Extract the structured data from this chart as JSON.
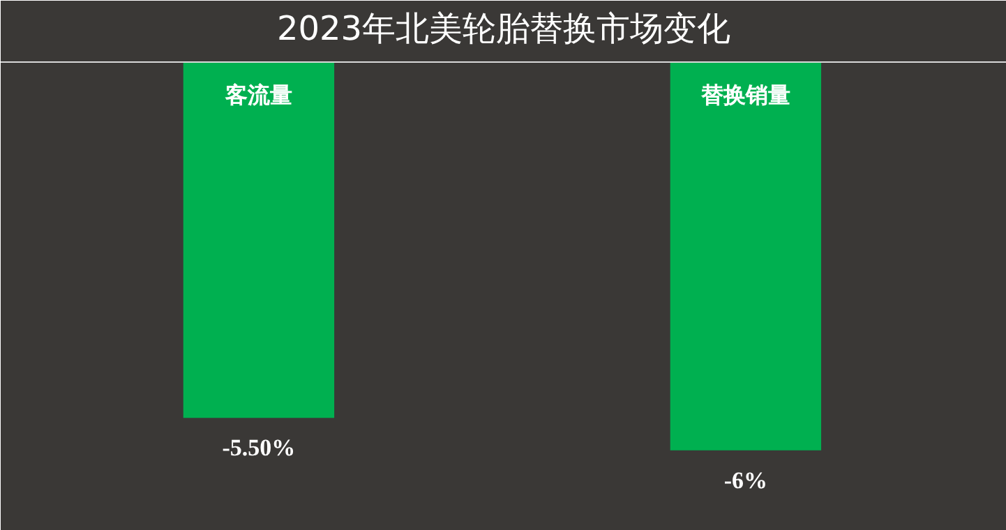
{
  "chart_data": {
    "type": "bar",
    "title": "2023年北美轮胎替换市场变化",
    "categories": [
      "客流量",
      "替换销量"
    ],
    "values": [
      -5.5,
      -6
    ],
    "value_labels": [
      "-5.50%",
      "-6%"
    ],
    "color": "#00b050",
    "ylim": [
      -7.2,
      0
    ],
    "tick_labels": false,
    "grid": false
  }
}
